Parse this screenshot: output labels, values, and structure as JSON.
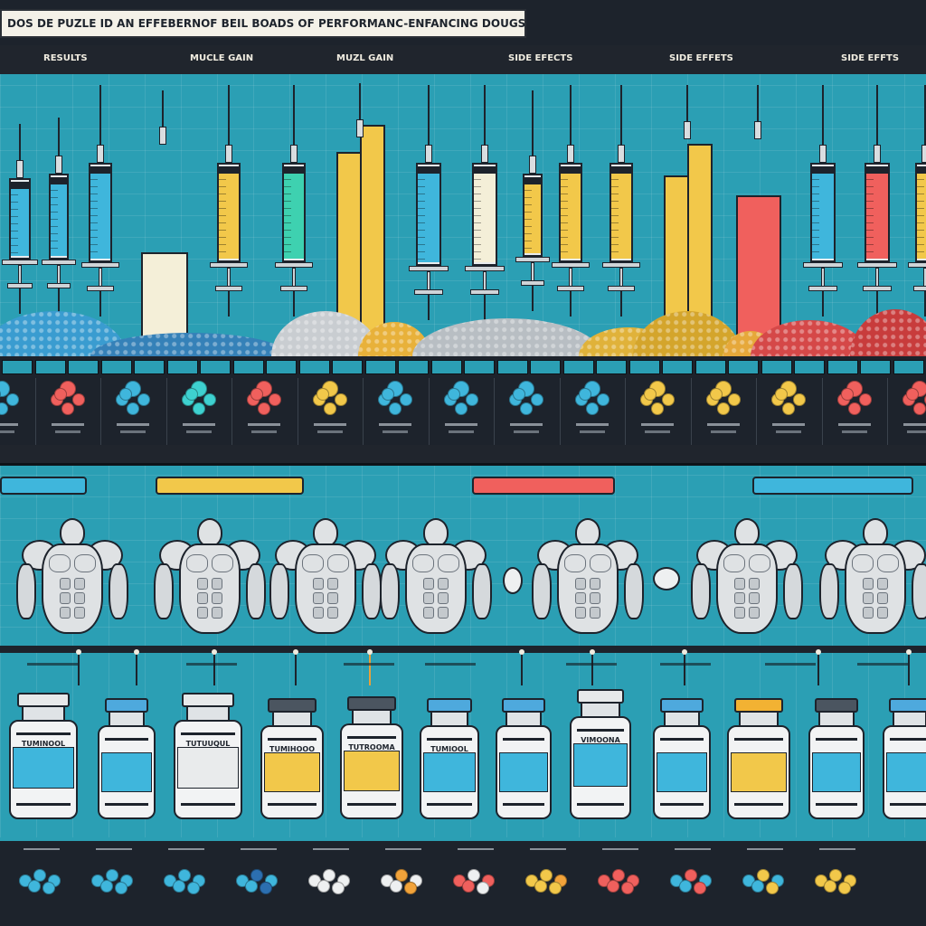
{
  "banner": {
    "title": "DOS DE PUZLE ID AN EFFEBERNOF BEIL BOADS OF PERFORMANC-ENFANCING DOUGS"
  },
  "column_headers": [
    "RESULTS",
    "MUCLE GAIN",
    "MUZL GAIN",
    "SIDE EFECTS",
    "SIDE EFFETS",
    "SIDE EFFTS"
  ],
  "vials": [
    {
      "label": "TUMINOOL",
      "accent": "#3fb6dc",
      "cap": "#e7e9ea"
    },
    {
      "label": "",
      "accent": "#3fb6dc",
      "cap": "#4ea9dd"
    },
    {
      "label": "TUTUUQUL",
      "accent": "#e9ebec",
      "cap": "#e7e9ea"
    },
    {
      "label": "TUMIHOOO",
      "accent": "#f2c84a",
      "cap": "#4b5560"
    },
    {
      "label": "TUTROOMA",
      "accent": "#f2c84a",
      "cap": "#4b5560"
    },
    {
      "label": "TUMIOOL",
      "accent": "#3fb6dc",
      "cap": "#4ea9dd"
    },
    {
      "label": "",
      "accent": "#3fb6dc",
      "cap": "#4ea9dd"
    },
    {
      "label": "VIMOONA",
      "accent": "#3fb6dc",
      "cap": "#e7e9ea"
    },
    {
      "label": "",
      "accent": "#3fb6dc",
      "cap": "#4ea9dd"
    },
    {
      "label": "",
      "accent": "#f2c84a",
      "cap": "#f2b233"
    },
    {
      "label": "",
      "accent": "#3fb6dc",
      "cap": "#4b5560"
    },
    {
      "label": "",
      "accent": "#3fb6dc",
      "cap": "#4ea9dd"
    }
  ],
  "colors": {
    "panel": "#2b9fb4",
    "dark": "#1d232c",
    "blue": "#3fb6dc",
    "yellow": "#f2c84a",
    "red": "#f0605d",
    "cream": "#f4efd8",
    "teal": "#3ed1b0"
  }
}
